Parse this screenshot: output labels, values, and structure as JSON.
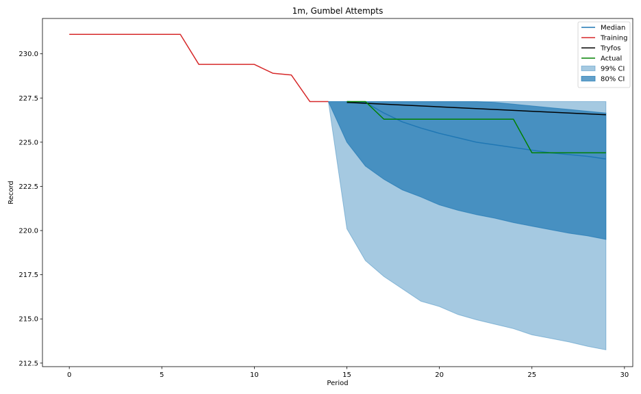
{
  "chart_data": {
    "type": "line",
    "title": "1m, Gumbel Attempts",
    "xlabel": "Period",
    "ylabel": "Record",
    "xlim": [
      -1.45,
      30.45
    ],
    "ylim": [
      212.3,
      232.0
    ],
    "xticks": [
      0,
      5,
      10,
      15,
      20,
      25,
      30
    ],
    "xtick_labels": [
      "0",
      "5",
      "10",
      "15",
      "20",
      "25",
      "30"
    ],
    "yticks": [
      212.5,
      215.0,
      217.5,
      220.0,
      222.5,
      225.0,
      227.5,
      230.0
    ],
    "ytick_labels": [
      "212.5",
      "215.0",
      "217.5",
      "220.0",
      "222.5",
      "225.0",
      "227.5",
      "230.0"
    ],
    "grid": false,
    "legend_position": "top-right",
    "legend": [
      {
        "label": "Median",
        "kind": "line",
        "color": "#1f77b4"
      },
      {
        "label": "Training",
        "kind": "line",
        "color": "#d62728"
      },
      {
        "label": "Tryfos",
        "kind": "line",
        "color": "#000000"
      },
      {
        "label": "Actual",
        "kind": "line",
        "color": "#008000"
      },
      {
        "label": "99% CI",
        "kind": "patch",
        "color": "#1f77b4",
        "opacity": 0.4
      },
      {
        "label": "80% CI",
        "kind": "patch",
        "color": "#1f77b4",
        "opacity": 0.7
      }
    ],
    "bands": [
      {
        "name": "99% CI",
        "color": "#1f77b4",
        "opacity": 0.4,
        "x": [
          14,
          15,
          16,
          17,
          18,
          19,
          20,
          21,
          22,
          23,
          24,
          25,
          26,
          27,
          28,
          29
        ],
        "lower": [
          227.3,
          220.1,
          218.3,
          217.4,
          216.7,
          216.0,
          215.7,
          215.25,
          214.95,
          214.7,
          214.45,
          214.1,
          213.9,
          213.7,
          213.45,
          213.25
        ],
        "upper": [
          227.3,
          227.3,
          227.3,
          227.3,
          227.3,
          227.3,
          227.3,
          227.3,
          227.3,
          227.3,
          227.3,
          227.3,
          227.3,
          227.3,
          227.3,
          227.3
        ]
      },
      {
        "name": "80% CI",
        "color": "#1f77b4",
        "opacity": 0.7,
        "x": [
          14,
          15,
          16,
          17,
          18,
          19,
          20,
          21,
          22,
          23,
          24,
          25,
          26,
          27,
          28,
          29
        ],
        "lower": [
          227.3,
          225.0,
          223.65,
          222.9,
          222.3,
          221.9,
          221.45,
          221.15,
          220.9,
          220.7,
          220.45,
          220.25,
          220.05,
          219.85,
          219.7,
          219.5
        ],
        "upper": [
          227.3,
          227.3,
          227.3,
          227.3,
          227.3,
          227.3,
          227.3,
          227.3,
          227.3,
          227.25,
          227.15,
          227.05,
          226.95,
          226.85,
          226.75,
          226.65
        ]
      }
    ],
    "series": [
      {
        "name": "Median",
        "color": "#1f77b4",
        "x": [
          15,
          16,
          17,
          18,
          19,
          20,
          21,
          22,
          23,
          24,
          25,
          26,
          27,
          28,
          29
        ],
        "y": [
          227.3,
          227.25,
          226.65,
          226.15,
          225.8,
          225.5,
          225.25,
          225.0,
          224.85,
          224.7,
          224.55,
          224.4,
          224.3,
          224.2,
          224.05
        ]
      },
      {
        "name": "Training",
        "color": "#d62728",
        "x": [
          0,
          1,
          2,
          3,
          4,
          5,
          6,
          7,
          8,
          9,
          10,
          11,
          12,
          13,
          14
        ],
        "y": [
          231.1,
          231.1,
          231.1,
          231.1,
          231.1,
          231.1,
          231.1,
          229.4,
          229.4,
          229.4,
          229.4,
          228.9,
          228.8,
          227.3,
          227.3
        ]
      },
      {
        "name": "Tryfos",
        "color": "#000000",
        "x": [
          15,
          29
        ],
        "y": [
          227.25,
          226.55
        ]
      },
      {
        "name": "Actual",
        "color": "#008000",
        "x": [
          15,
          16,
          17,
          18,
          19,
          20,
          21,
          22,
          23,
          24,
          25,
          26,
          27,
          28,
          29
        ],
        "y": [
          227.3,
          227.3,
          226.3,
          226.3,
          226.3,
          226.3,
          226.3,
          226.3,
          226.3,
          226.3,
          224.4,
          224.4,
          224.4,
          224.4,
          224.4
        ]
      }
    ]
  }
}
